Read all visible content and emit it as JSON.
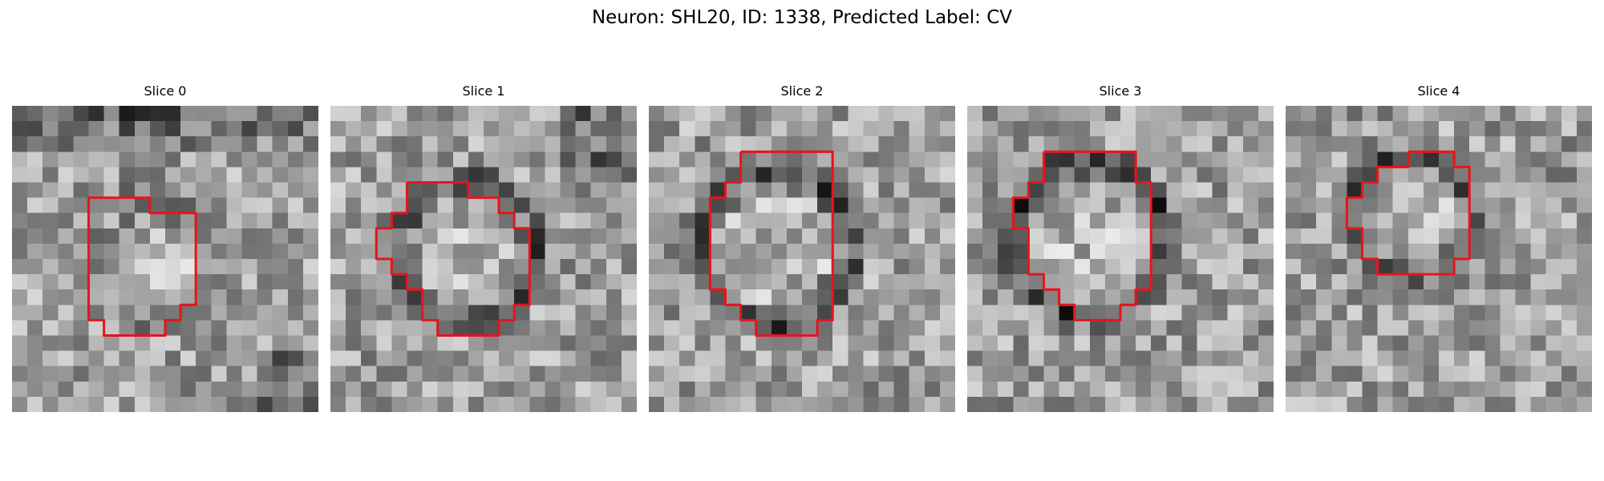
{
  "figure": {
    "title": "Neuron: SHL20, ID: 1338, Predicted Label: CV"
  },
  "panels": [
    {
      "title": "Slice 0",
      "contour": [
        [
          5,
          6
        ],
        [
          9,
          6
        ],
        [
          9,
          7
        ],
        [
          12,
          7
        ],
        [
          12,
          13
        ],
        [
          11,
          13
        ],
        [
          11,
          14
        ],
        [
          10,
          14
        ],
        [
          10,
          15
        ],
        [
          6,
          15
        ],
        [
          6,
          14
        ],
        [
          5,
          14
        ],
        [
          5,
          13
        ],
        [
          5,
          6
        ]
      ]
    },
    {
      "title": "Slice 1",
      "contour": [
        [
          5,
          5
        ],
        [
          9,
          5
        ],
        [
          9,
          6
        ],
        [
          11,
          6
        ],
        [
          11,
          7
        ],
        [
          12,
          7
        ],
        [
          12,
          8
        ],
        [
          13,
          8
        ],
        [
          13,
          13
        ],
        [
          12,
          13
        ],
        [
          12,
          14
        ],
        [
          11,
          14
        ],
        [
          11,
          15
        ],
        [
          7,
          15
        ],
        [
          7,
          14
        ],
        [
          6,
          14
        ],
        [
          6,
          12
        ],
        [
          5,
          12
        ],
        [
          5,
          11
        ],
        [
          4,
          11
        ],
        [
          4,
          10
        ],
        [
          3,
          10
        ],
        [
          3,
          9
        ],
        [
          3,
          8
        ],
        [
          4,
          8
        ],
        [
          4,
          7
        ],
        [
          5,
          7
        ],
        [
          5,
          5
        ]
      ]
    },
    {
      "title": "Slice 2",
      "contour": [
        [
          6,
          3
        ],
        [
          12,
          3
        ],
        [
          12,
          14
        ],
        [
          11,
          14
        ],
        [
          11,
          15
        ],
        [
          7,
          15
        ],
        [
          7,
          14
        ],
        [
          6,
          14
        ],
        [
          6,
          13
        ],
        [
          5,
          13
        ],
        [
          5,
          12
        ],
        [
          4,
          12
        ],
        [
          4,
          6
        ],
        [
          5,
          6
        ],
        [
          5,
          5
        ],
        [
          6,
          5
        ],
        [
          6,
          3
        ]
      ]
    },
    {
      "title": "Slice 3",
      "contour": [
        [
          5,
          3
        ],
        [
          11,
          3
        ],
        [
          11,
          5
        ],
        [
          12,
          5
        ],
        [
          12,
          12
        ],
        [
          11,
          12
        ],
        [
          11,
          13
        ],
        [
          10,
          13
        ],
        [
          10,
          14
        ],
        [
          7,
          14
        ],
        [
          7,
          13
        ],
        [
          6,
          13
        ],
        [
          6,
          12
        ],
        [
          5,
          12
        ],
        [
          5,
          11
        ],
        [
          4,
          11
        ],
        [
          4,
          8
        ],
        [
          3,
          8
        ],
        [
          3,
          6
        ],
        [
          4,
          6
        ],
        [
          4,
          5
        ],
        [
          5,
          5
        ],
        [
          5,
          3
        ]
      ]
    },
    {
      "title": "Slice 4",
      "contour": [
        [
          8,
          3
        ],
        [
          11,
          3
        ],
        [
          11,
          4
        ],
        [
          12,
          4
        ],
        [
          12,
          10
        ],
        [
          11,
          10
        ],
        [
          11,
          11
        ],
        [
          6,
          11
        ],
        [
          6,
          10
        ],
        [
          5,
          10
        ],
        [
          5,
          8
        ],
        [
          4,
          8
        ],
        [
          4,
          6
        ],
        [
          5,
          6
        ],
        [
          5,
          5
        ],
        [
          6,
          5
        ],
        [
          6,
          4
        ],
        [
          8,
          4
        ],
        [
          8,
          3
        ]
      ]
    }
  ]
}
